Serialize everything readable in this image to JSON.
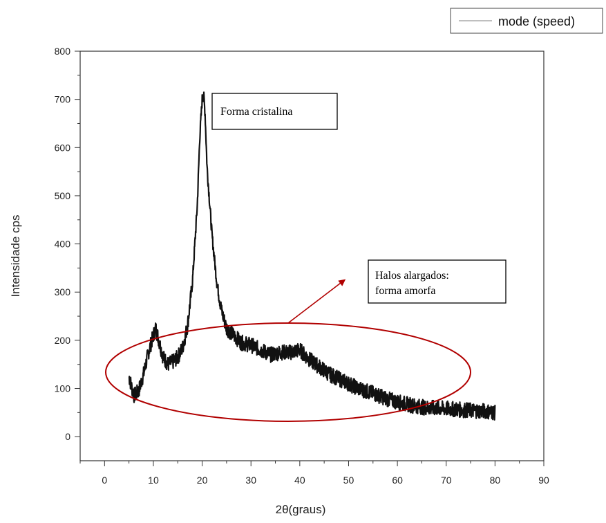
{
  "chart_data": {
    "type": "line",
    "xlabel": "2θ(graus)",
    "ylabel": "Intensidade cps",
    "xlim": [
      -5,
      90
    ],
    "ylim": [
      -50,
      800
    ],
    "xticks": [
      0,
      10,
      20,
      30,
      40,
      50,
      60,
      70,
      80,
      90
    ],
    "yticks": [
      0,
      100,
      200,
      300,
      400,
      500,
      600,
      700,
      800
    ],
    "grid": false,
    "legend_position": "top-right",
    "series": [
      {
        "name": "mode (speed)",
        "color": "#111111",
        "x": [
          5,
          6,
          7,
          8,
          9,
          10,
          10.5,
          11,
          12,
          13,
          14,
          15,
          16,
          17,
          18,
          19,
          19.5,
          20,
          20.3,
          20.6,
          21,
          21.5,
          22,
          23,
          24,
          25,
          26,
          28,
          30,
          32,
          34,
          36,
          38,
          40,
          42,
          44,
          46,
          48,
          50,
          52,
          55,
          58,
          60,
          63,
          66,
          70,
          74,
          78,
          80
        ],
        "y": [
          125,
          85,
          95,
          130,
          175,
          210,
          225,
          205,
          165,
          150,
          155,
          165,
          185,
          230,
          320,
          480,
          620,
          700,
          710,
          670,
          560,
          490,
          420,
          320,
          260,
          225,
          215,
          195,
          190,
          180,
          170,
          175,
          175,
          180,
          160,
          145,
          130,
          120,
          110,
          100,
          90,
          78,
          72,
          65,
          60,
          58,
          55,
          53,
          50
        ]
      }
    ],
    "annotations": [
      {
        "text": "Forma cristalina"
      },
      {
        "text": "Halos alargados:",
        "text2": "forma amorfa"
      }
    ],
    "highlight_color": "#b10000"
  }
}
